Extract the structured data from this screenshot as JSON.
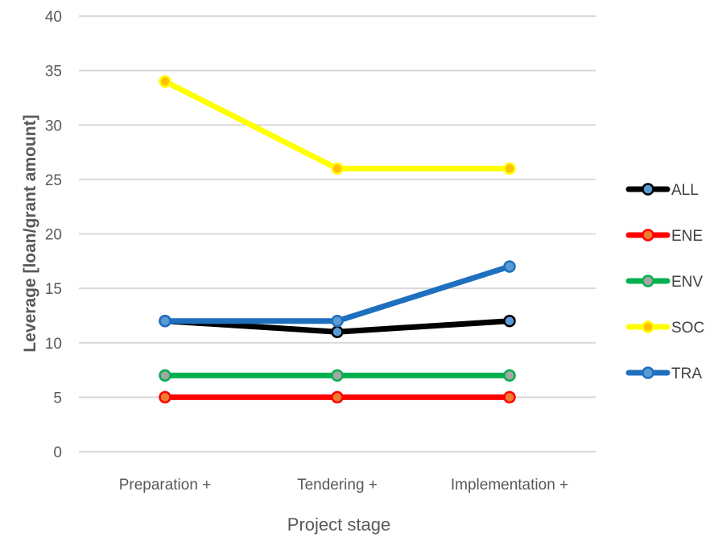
{
  "chart_data": {
    "type": "line",
    "categories": [
      "Preparation +",
      "Tendering +",
      "Implementation +"
    ],
    "series": [
      {
        "name": "ALL",
        "values": [
          12,
          11,
          12
        ],
        "color": "#000000",
        "marker_fill": "#5b9bd5"
      },
      {
        "name": "ENE",
        "values": [
          5,
          5,
          5
        ],
        "color": "#ff0000",
        "marker_fill": "#ed7d31"
      },
      {
        "name": "ENV",
        "values": [
          7,
          7,
          7
        ],
        "color": "#00b050",
        "marker_fill": "#a5a5a5"
      },
      {
        "name": "SOC",
        "values": [
          34,
          26,
          26
        ],
        "color": "#ffff00",
        "marker_fill": "#ffc000"
      },
      {
        "name": "TRA",
        "values": [
          12,
          12,
          17
        ],
        "color": "#1f6fbf",
        "marker_fill": "#5b9bd5"
      }
    ],
    "xlabel": "Project stage",
    "ylabel": "Leverage [loan/grant amount]",
    "ylim": [
      0,
      40
    ],
    "yticks": [
      0,
      5,
      10,
      15,
      20,
      25,
      30,
      35,
      40
    ],
    "grid": true,
    "legend_position": "right"
  }
}
